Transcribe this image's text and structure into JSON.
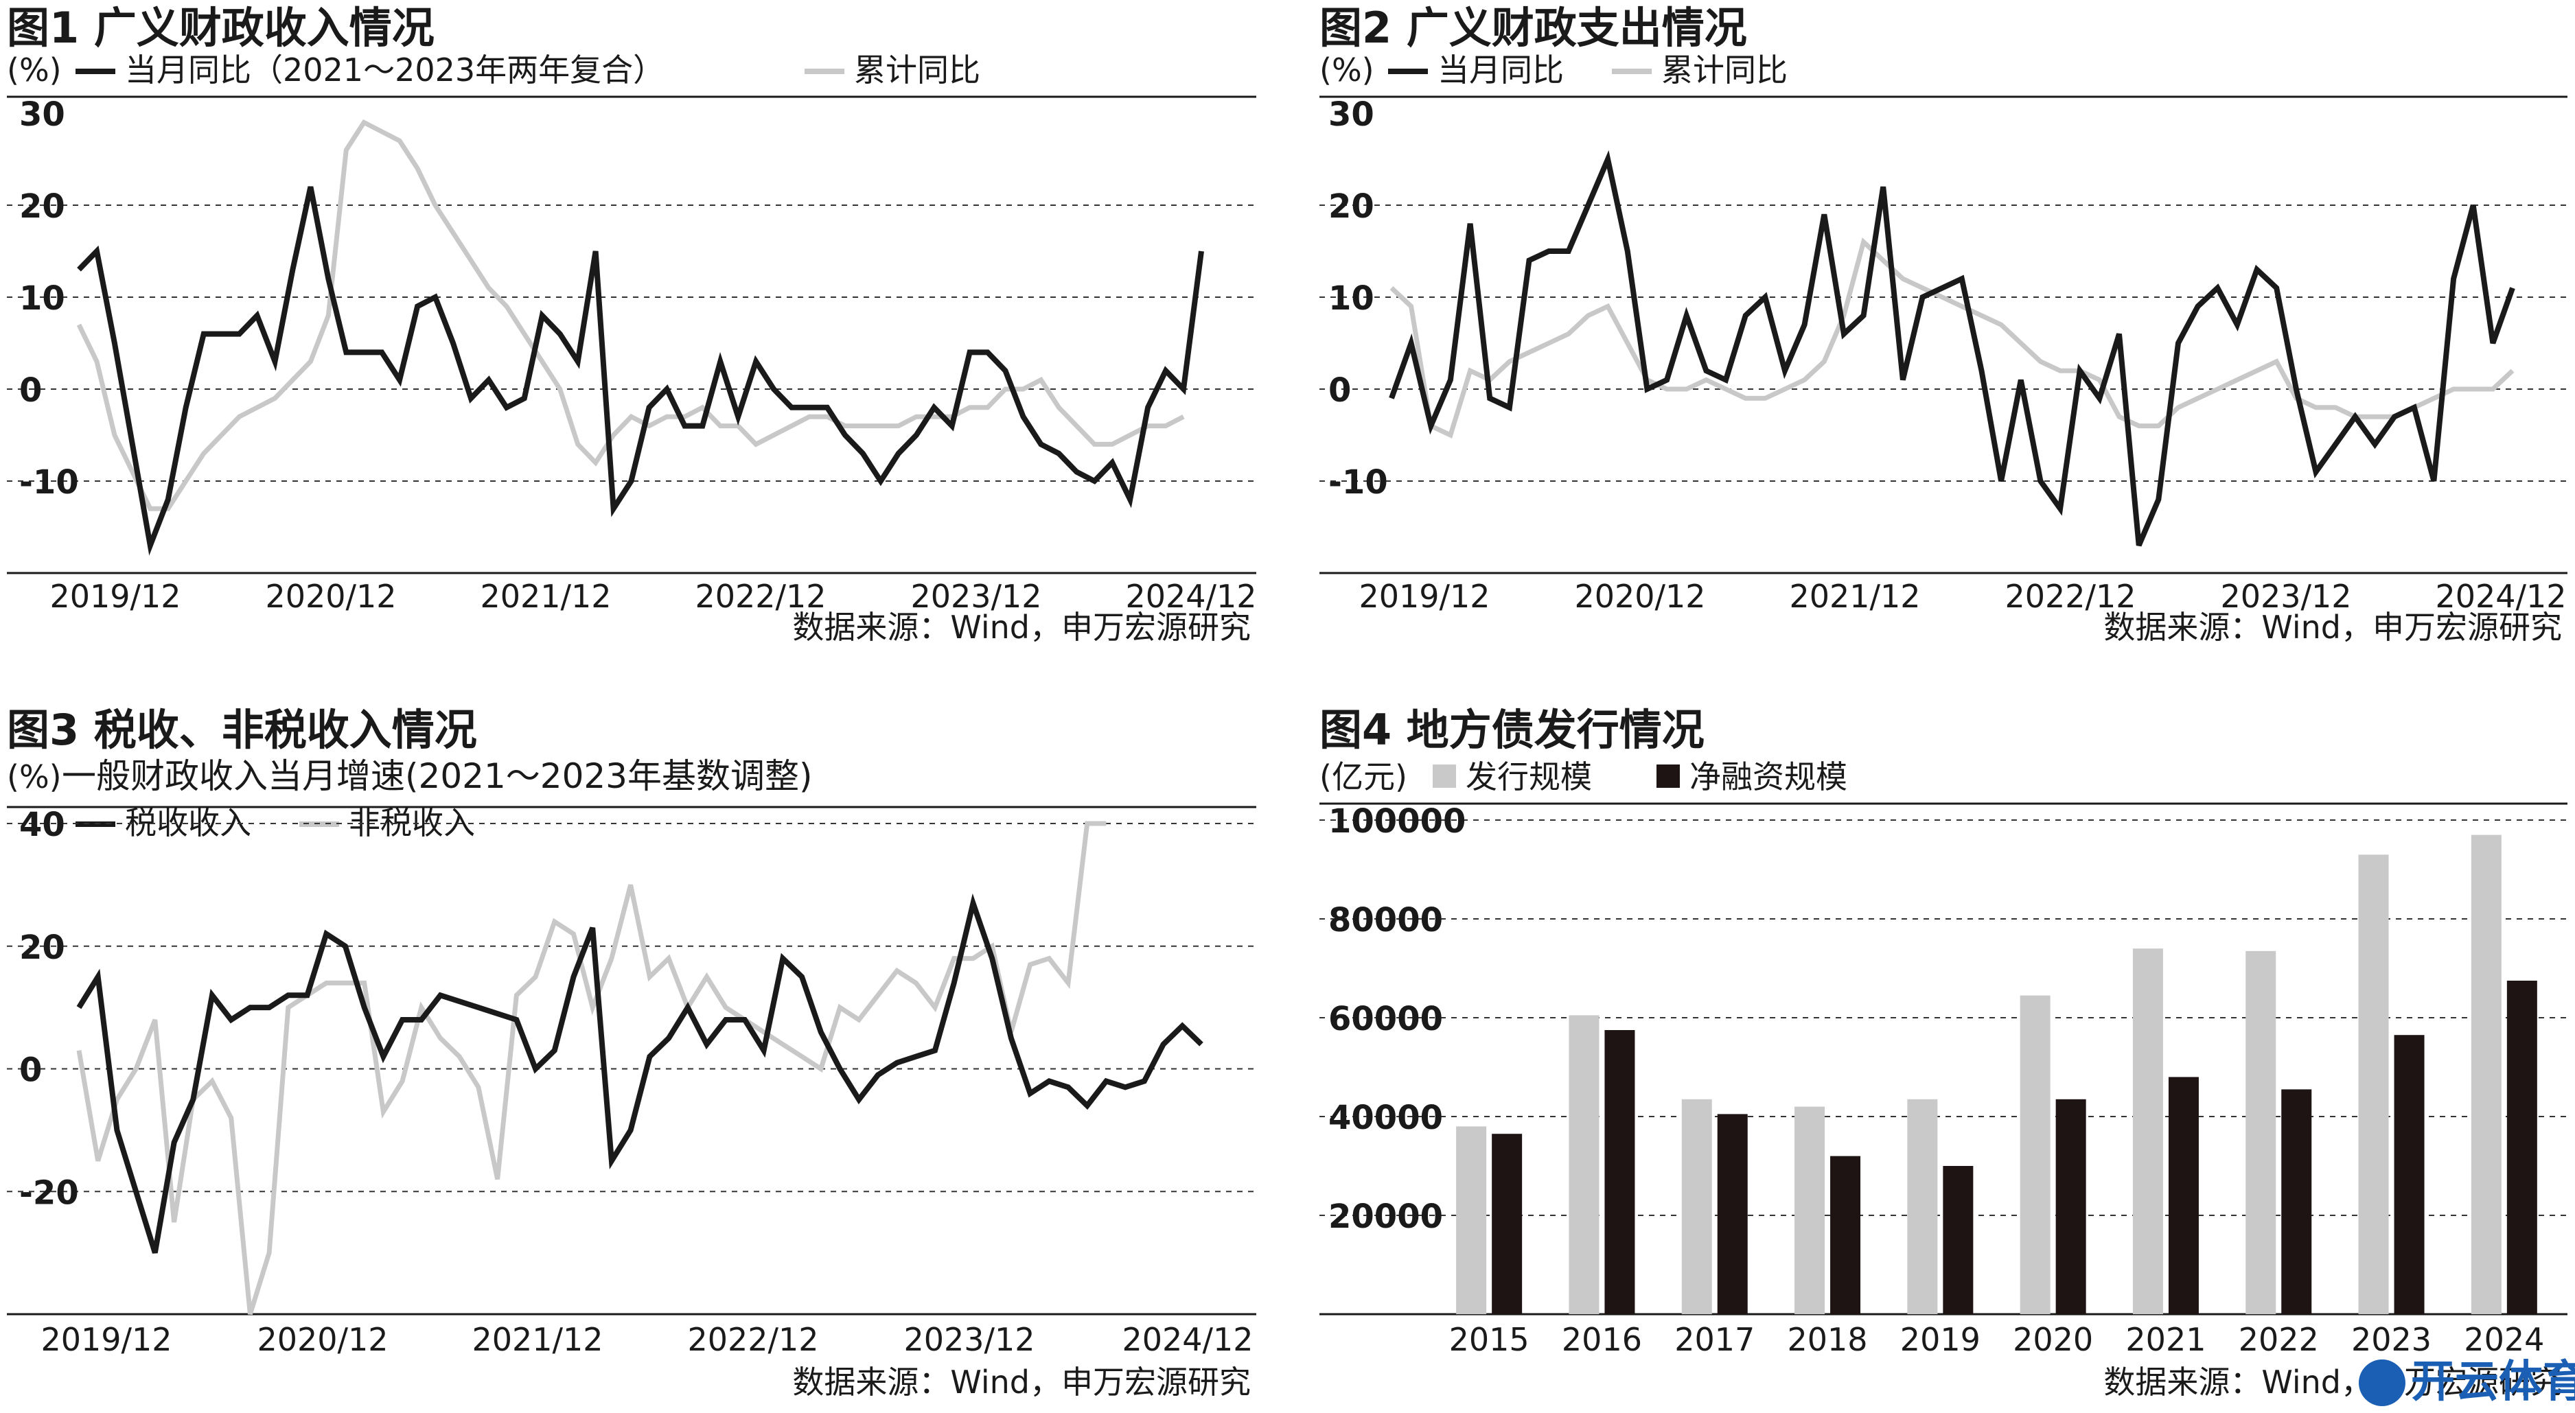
{
  "colors": {
    "dark": "#1a1a1a",
    "light": "#c8c8c8",
    "bar_light": "#c9c9c9",
    "bar_dark": "#1e1414"
  },
  "source_text": "数据来源：Wind，申万宏源研究",
  "watermark": {
    "icon": "kaiyun-logo-icon",
    "text": "开云体育"
  },
  "chart_data": [
    {
      "id": "fig1",
      "type": "line",
      "title": "图1 广义财政收入情况",
      "unit": "(%)",
      "subtitle": "",
      "xticks": [
        "2019/12",
        "2020/12",
        "2021/12",
        "2022/12",
        "2023/12",
        "2024/12"
      ],
      "ylim": [
        -20,
        30
      ],
      "yticks": [
        30,
        20,
        10,
        0,
        -10
      ],
      "grid": true,
      "legend": "top",
      "series": [
        {
          "name": "当月同比（2021～2023年两年复合）",
          "style": "dark",
          "values": [
            13,
            15,
            5,
            -6,
            -17,
            -12,
            -2,
            6,
            6,
            6,
            8,
            3,
            13,
            22,
            12,
            4,
            4,
            4,
            1,
            9,
            10,
            5,
            -1,
            1,
            -2,
            -1,
            8,
            6,
            3,
            15,
            -13,
            -10,
            -2,
            0,
            -4,
            -4,
            3,
            -3,
            3,
            0,
            -2,
            -2,
            -2,
            -5,
            -7,
            -10,
            -7,
            -5,
            -2,
            -4,
            4,
            4,
            2,
            -3,
            -6,
            -7,
            -9,
            -10,
            -8,
            -12,
            -2,
            2,
            0,
            15
          ]
        },
        {
          "name": "累计同比",
          "style": "light",
          "values": [
            7,
            3,
            -5,
            -9,
            -13,
            -13,
            -10,
            -7,
            -5,
            -3,
            -2,
            -1,
            1,
            3,
            8,
            26,
            29,
            28,
            27,
            24,
            20,
            17,
            14,
            11,
            9,
            6,
            3,
            0,
            -6,
            -8,
            -5,
            -3,
            -4,
            -3,
            -3,
            -2,
            -4,
            -4,
            -6,
            -5,
            -4,
            -3,
            -3,
            -4,
            -4,
            -4,
            -4,
            -3,
            -3,
            -3,
            -2,
            -2,
            0,
            0,
            1,
            -2,
            -4,
            -6,
            -6,
            -5,
            -4,
            -4,
            -3
          ]
        }
      ]
    },
    {
      "id": "fig2",
      "type": "line",
      "title": "图2 广义财政支出情况",
      "unit": "(%)",
      "subtitle": "",
      "xticks": [
        "2019/12",
        "2020/12",
        "2021/12",
        "2022/12",
        "2023/12",
        "2024/12"
      ],
      "ylim": [
        -20,
        30
      ],
      "yticks": [
        30,
        20,
        10,
        0,
        -10
      ],
      "grid": true,
      "legend": "top",
      "series": [
        {
          "name": "当月同比",
          "style": "dark",
          "values": [
            -1,
            5,
            -4,
            1,
            18,
            -1,
            -2,
            14,
            15,
            15,
            20,
            25,
            15,
            0,
            1,
            8,
            2,
            1,
            8,
            10,
            2,
            7,
            19,
            6,
            8,
            22,
            1,
            10,
            11,
            12,
            2,
            -10,
            1,
            -10,
            -13,
            2,
            -1,
            6,
            -17,
            -12,
            5,
            9,
            11,
            7,
            13,
            11,
            0,
            -9,
            -6,
            -3,
            -6,
            -3,
            -2,
            -10,
            12,
            20,
            5,
            11
          ]
        },
        {
          "name": "累计同比",
          "style": "light",
          "values": [
            11,
            9,
            -4,
            -5,
            2,
            1,
            3,
            4,
            5,
            6,
            8,
            9,
            5,
            1,
            0,
            0,
            1,
            0,
            -1,
            -1,
            0,
            1,
            3,
            8,
            16,
            14,
            12,
            11,
            10,
            9,
            8,
            7,
            5,
            3,
            2,
            2,
            1,
            -3,
            -4,
            -4,
            -2,
            -1,
            0,
            1,
            2,
            3,
            -1,
            -2,
            -2,
            -3,
            -3,
            -3,
            -2,
            -1,
            0,
            0,
            0,
            2
          ]
        }
      ]
    },
    {
      "id": "fig3",
      "type": "line",
      "title": "图3 税收、非税收入情况",
      "unit": "(%)",
      "subtitle": "一般财政收入当月增速(2021～2023年基数调整)",
      "xticks": [
        "2019/12",
        "2020/12",
        "2021/12",
        "2022/12",
        "2023/12",
        "2024/12"
      ],
      "ylim": [
        -40,
        40
      ],
      "yticks": [
        40,
        20,
        0,
        -20
      ],
      "grid": true,
      "legend": "top",
      "series": [
        {
          "name": "税收收入",
          "style": "dark",
          "values": [
            10,
            15,
            -10,
            -20,
            -30,
            -12,
            -5,
            12,
            8,
            10,
            10,
            12,
            12,
            22,
            20,
            10,
            2,
            8,
            8,
            12,
            11,
            10,
            9,
            8,
            0,
            3,
            15,
            23,
            -15,
            -10,
            2,
            5,
            10,
            4,
            8,
            8,
            3,
            18,
            15,
            6,
            0,
            -5,
            -1,
            1,
            2,
            3,
            14,
            27,
            18,
            5,
            -4,
            -2,
            -3,
            -6,
            -2,
            -3,
            -2,
            4,
            7,
            4
          ]
        },
        {
          "name": "非税收入",
          "style": "light",
          "values": [
            3,
            -15,
            -5,
            0,
            8,
            -25,
            -5,
            -2,
            -8,
            -40,
            -30,
            10,
            12,
            14,
            14,
            14,
            -7,
            -2,
            10,
            5,
            2,
            -3,
            -18,
            12,
            15,
            24,
            22,
            10,
            18,
            30,
            15,
            18,
            10,
            15,
            10,
            8,
            6,
            4,
            2,
            0,
            10,
            8,
            12,
            16,
            14,
            10,
            18,
            18,
            20,
            6,
            17,
            18,
            14,
            40,
            40
          ]
        }
      ]
    },
    {
      "id": "fig4",
      "type": "bar",
      "title": "图4 地方债发行情况",
      "unit": "(亿元)",
      "subtitle": "",
      "categories": [
        "2015",
        "2016",
        "2017",
        "2018",
        "2019",
        "2020",
        "2021",
        "2022",
        "2023",
        "2024"
      ],
      "ylim": [
        0,
        100000
      ],
      "yticks": [
        100000,
        80000,
        60000,
        40000,
        20000
      ],
      "grid": true,
      "legend": "top",
      "series": [
        {
          "name": "发行规模",
          "style": "bar_light",
          "values": [
            38000,
            60500,
            43500,
            42000,
            43500,
            64500,
            74000,
            73500,
            93000,
            97000
          ]
        },
        {
          "name": "净融资规模",
          "style": "bar_dark",
          "values": [
            36500,
            57500,
            40500,
            32000,
            30000,
            43500,
            48000,
            45500,
            56500,
            67500
          ]
        }
      ]
    }
  ]
}
